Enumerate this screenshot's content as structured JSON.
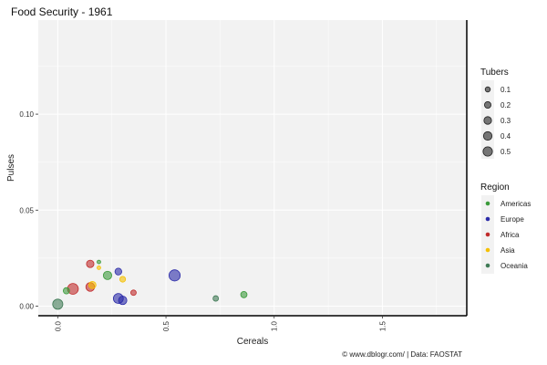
{
  "chart_data": {
    "type": "scatter",
    "title": "Food Security - 1961",
    "xlabel": "Cereals",
    "ylabel": "Pulses",
    "xlim": [
      -0.09,
      1.89
    ],
    "ylim": [
      -0.005,
      0.149
    ],
    "x_ticks": [
      "0.0",
      "0.5",
      "1.0",
      "1.5"
    ],
    "x_tick_values": [
      0.0,
      0.5,
      1.0,
      1.5
    ],
    "y_ticks": [
      "0.00",
      "0.05",
      "0.10"
    ],
    "y_tick_values": [
      0.0,
      0.05,
      0.1
    ],
    "grid": true,
    "legend_placement": "right",
    "size_legend": {
      "title": "Tubers",
      "values": [
        "0.1",
        "0.2",
        "0.3",
        "0.4",
        "0.5"
      ],
      "numbers": [
        0.1,
        0.2,
        0.3,
        0.4,
        0.5
      ]
    },
    "color_legend": {
      "title": "Region",
      "entries": [
        {
          "name": "Americas",
          "color": "#3a9a3a"
        },
        {
          "name": "Europe",
          "color": "#2a2aa8"
        },
        {
          "name": "Africa",
          "color": "#c02a2a"
        },
        {
          "name": "Asia",
          "color": "#f5c000"
        },
        {
          "name": "Oceania",
          "color": "#3f7a55"
        }
      ]
    },
    "points": [
      {
        "x": 0.0,
        "y": 0.001,
        "tubers": 0.3,
        "region": "Oceania"
      },
      {
        "x": 0.04,
        "y": 0.008,
        "tubers": 0.08,
        "region": "Americas"
      },
      {
        "x": 0.07,
        "y": 0.009,
        "tubers": 0.35,
        "region": "Africa"
      },
      {
        "x": 0.15,
        "y": 0.01,
        "tubers": 0.2,
        "region": "Africa"
      },
      {
        "x": 0.16,
        "y": 0.011,
        "tubers": 0.12,
        "region": "Asia"
      },
      {
        "x": 0.15,
        "y": 0.022,
        "tubers": 0.13,
        "region": "Africa"
      },
      {
        "x": 0.19,
        "y": 0.023,
        "tubers": 0.01,
        "region": "Americas"
      },
      {
        "x": 0.19,
        "y": 0.02,
        "tubers": 0.01,
        "region": "Asia"
      },
      {
        "x": 0.23,
        "y": 0.016,
        "tubers": 0.18,
        "region": "Americas"
      },
      {
        "x": 0.28,
        "y": 0.018,
        "tubers": 0.1,
        "region": "Europe"
      },
      {
        "x": 0.3,
        "y": 0.014,
        "tubers": 0.06,
        "region": "Asia"
      },
      {
        "x": 0.28,
        "y": 0.004,
        "tubers": 0.28,
        "region": "Europe"
      },
      {
        "x": 0.3,
        "y": 0.003,
        "tubers": 0.18,
        "region": "Europe"
      },
      {
        "x": 0.35,
        "y": 0.007,
        "tubers": 0.05,
        "region": "Africa"
      },
      {
        "x": 0.54,
        "y": 0.016,
        "tubers": 0.38,
        "region": "Europe"
      },
      {
        "x": 0.73,
        "y": 0.004,
        "tubers": 0.05,
        "region": "Oceania"
      },
      {
        "x": 0.86,
        "y": 0.006,
        "tubers": 0.08,
        "region": "Americas"
      }
    ]
  },
  "caption": "© www.dblogr.com/  |  Data: FAOSTAT"
}
